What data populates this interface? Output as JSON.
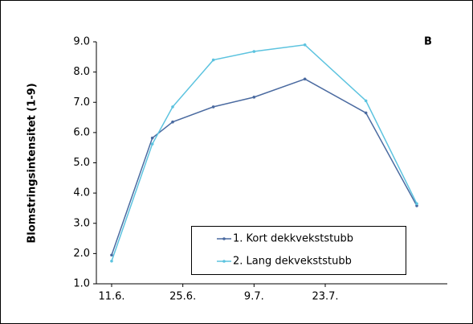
{
  "chart_data": {
    "type": "line",
    "ylabel": "Blomstringsintensitet (1-9)",
    "annotation": "B",
    "x": [
      0,
      8,
      12,
      20,
      28,
      38,
      50,
      60
    ],
    "xlim": [
      -3,
      66
    ],
    "xticks": [
      {
        "value": 0,
        "label": "11.6."
      },
      {
        "value": 14,
        "label": "25.6."
      },
      {
        "value": 28,
        "label": "9.7."
      },
      {
        "value": 42,
        "label": "23.7."
      }
    ],
    "ylim": [
      1,
      9
    ],
    "yticks": [
      {
        "value": 1,
        "label": "1.0"
      },
      {
        "value": 2,
        "label": "2.0"
      },
      {
        "value": 3,
        "label": "3.0"
      },
      {
        "value": 4,
        "label": "4.0"
      },
      {
        "value": 5,
        "label": "5.0"
      },
      {
        "value": 6,
        "label": "6.0"
      },
      {
        "value": 7,
        "label": "7.0"
      },
      {
        "value": 8,
        "label": "8.0"
      },
      {
        "value": 9,
        "label": "9.0"
      }
    ],
    "series": [
      {
        "name": "1. Kort dekkvekststubb",
        "color": "#4a6aa0",
        "values": [
          1.95,
          5.82,
          6.35,
          6.85,
          7.17,
          7.77,
          6.65,
          3.58
        ]
      },
      {
        "name": "2. Lang dekvekststubb",
        "color": "#5cc3df",
        "values": [
          1.75,
          5.62,
          6.85,
          8.4,
          8.68,
          8.9,
          7.05,
          3.65
        ]
      }
    ]
  }
}
